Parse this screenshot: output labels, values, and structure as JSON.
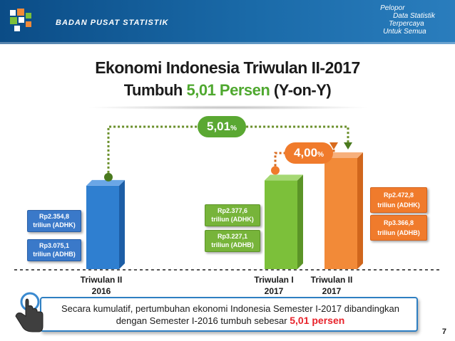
{
  "header": {
    "org_name": "BADAN PUSAT STATISTIK",
    "tagline": [
      "Pelopor",
      "Data Statistik",
      "Terpercaya",
      "Untuk Semua"
    ],
    "color": "#0b4c86"
  },
  "slide": {
    "title_line1": "Ekonomi Indonesia Triwulan II-2017",
    "title_line2_pre": "Tumbuh ",
    "title_line2_accent": "5,01 Persen",
    "title_line2_post": " (Y-on-Y)",
    "page_number": "7"
  },
  "growth_yoy": {
    "value": "5,01",
    "unit": "%",
    "color": "#4fa82f"
  },
  "growth_qtq": {
    "value": "4,00",
    "unit": "%",
    "color": "#f07b2c"
  },
  "chart_data": {
    "type": "bar",
    "categories": [
      "Triwulan II 2016",
      "Triwulan I 2017",
      "Triwulan II 2017"
    ],
    "category_lines": [
      [
        "Triwulan II",
        "2016"
      ],
      [
        "Triwulan I",
        "2017"
      ],
      [
        "Triwulan II",
        "2017"
      ]
    ],
    "series": [
      {
        "name": "ADHK",
        "values": [
          2354.8,
          2377.6,
          2472.8
        ],
        "labels": [
          "Rp2.354,8 triliun (ADHK)",
          "Rp2.377,6 triliun (ADHK)",
          "Rp2.472,8 triliun (ADHK)"
        ]
      },
      {
        "name": "ADHB",
        "values": [
          3075.1,
          3227.1,
          3366.8
        ],
        "labels": [
          "Rp3.075,1 triliun (ADHB)",
          "Rp3.227,1 triliun (ADHB)",
          "Rp3.366,8 triliun (ADHB)"
        ]
      }
    ],
    "bar_colors": [
      "#2f7fd0",
      "#7cc03a",
      "#f28a38"
    ],
    "ylim": [
      2000,
      2500
    ],
    "annotations": [
      {
        "label": "5,01%",
        "from": "Triwulan II 2016",
        "to": "Triwulan II 2017"
      },
      {
        "label": "4,00%",
        "from": "Triwulan I 2017",
        "to": "Triwulan II 2017"
      }
    ]
  },
  "labels": {
    "q2_2016": {
      "adhk_line1": "Rp2.354,8",
      "adhk_line2": "triliun (ADHK)",
      "adhb_line1": "Rp3.075,1",
      "adhb_line2": "triliun (ADHB)"
    },
    "q1_2017": {
      "adhk_line1": "Rp2.377,6",
      "adhk_line2": "triliun (ADHK)",
      "adhb_line1": "Rp3.227,1",
      "adhb_line2": "triliun (ADHB)"
    },
    "q2_2017": {
      "adhk_line1": "Rp2.472,8",
      "adhk_line2": "triliun (ADHK)",
      "adhb_line1": "Rp3.366,8",
      "adhb_line2": "triliun (ADHB)"
    }
  },
  "summary": {
    "line1": "Secara kumulatif, pertumbuhan ekonomi Indonesia Semester I-2017 dibandingkan",
    "line2_pre": "dengan Semester I-2016 tumbuh sebesar ",
    "line2_highlight": "5,01 persen"
  },
  "icons": {
    "pointer": "hand-pointer-icon",
    "logo": "bps-logo-icon"
  }
}
